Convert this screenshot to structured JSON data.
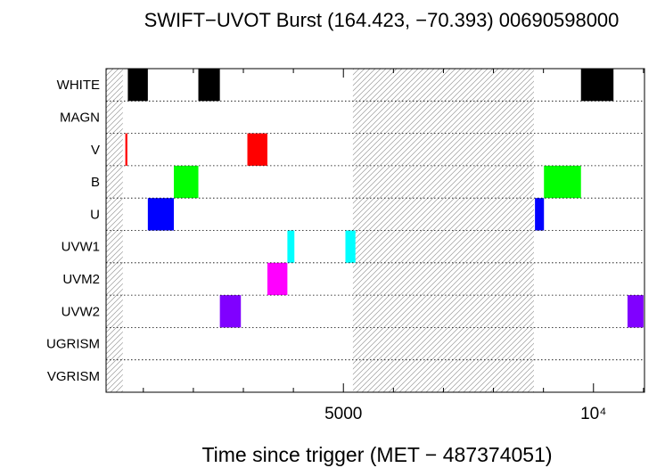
{
  "chart_data": {
    "type": "timeline",
    "title": "SWIFT−UVOT Burst (164.423, −70.393) 00690598000",
    "xlabel": "Time since trigger (MET − 487374051)",
    "ylabel": "",
    "xlim": [
      255,
      11020
    ],
    "x_ticks": [
      {
        "value": 5000,
        "label": "5000"
      },
      {
        "value": 10000,
        "label": "10⁴"
      }
    ],
    "x_minor_step": 1000,
    "filters": [
      "WHITE",
      "MAGN",
      "V",
      "B",
      "U",
      "UVW1",
      "UVM2",
      "UVW2",
      "UGRISM",
      "VGRISM"
    ],
    "hatched_ranges": [
      [
        255,
        590
      ],
      [
        5190,
        8810
      ]
    ],
    "exposures": [
      {
        "filter": "WHITE",
        "start": 690,
        "end": 1090,
        "color": "#000000"
      },
      {
        "filter": "WHITE",
        "start": 2100,
        "end": 2530,
        "color": "#000000"
      },
      {
        "filter": "WHITE",
        "start": 9750,
        "end": 10400,
        "color": "#000000"
      },
      {
        "filter": "V",
        "start": 640,
        "end": 680,
        "color": "#ff0000"
      },
      {
        "filter": "V",
        "start": 3080,
        "end": 3480,
        "color": "#ff0000"
      },
      {
        "filter": "B",
        "start": 1610,
        "end": 2100,
        "color": "#00ff00"
      },
      {
        "filter": "B",
        "start": 9010,
        "end": 9750,
        "color": "#00ff00"
      },
      {
        "filter": "U",
        "start": 1090,
        "end": 1610,
        "color": "#0000ff"
      },
      {
        "filter": "U",
        "start": 8830,
        "end": 9010,
        "color": "#0000ff"
      },
      {
        "filter": "UVW1",
        "start": 3880,
        "end": 4020,
        "color": "#00ffff"
      },
      {
        "filter": "UVW1",
        "start": 5040,
        "end": 5240,
        "color": "#00ffff"
      },
      {
        "filter": "UVM2",
        "start": 3480,
        "end": 3880,
        "color": "#ff00ff"
      },
      {
        "filter": "UVW2",
        "start": 2530,
        "end": 2950,
        "color": "#8000ff"
      },
      {
        "filter": "UVW2",
        "start": 10680,
        "end": 11000,
        "color": "#8000ff"
      }
    ]
  }
}
